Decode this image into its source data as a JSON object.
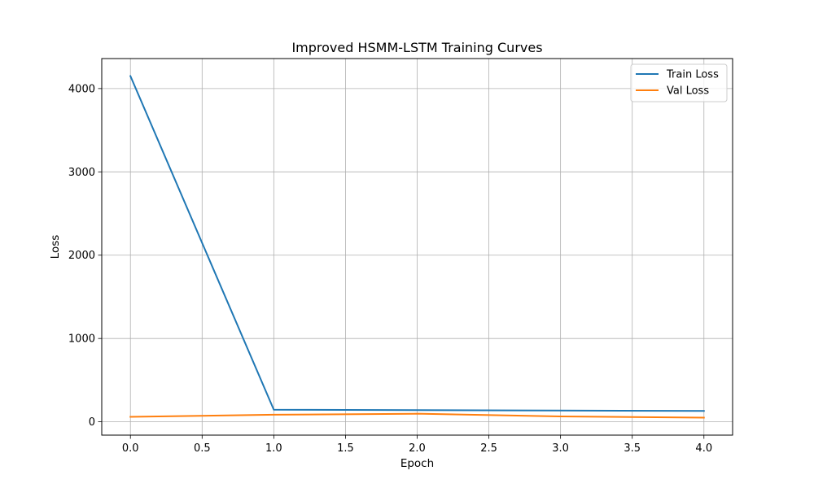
{
  "chart_data": {
    "type": "line",
    "title": "Improved HSMM-LSTM Training Curves",
    "xlabel": "Epoch",
    "ylabel": "Loss",
    "x": [
      0,
      1,
      2,
      3,
      4
    ],
    "xlim": [
      -0.2,
      4.2
    ],
    "ylim": [
      -160,
      4360
    ],
    "xticks": [
      0.0,
      0.5,
      1.0,
      1.5,
      2.0,
      2.5,
      3.0,
      3.5,
      4.0
    ],
    "xtick_labels": [
      "0.0",
      "0.5",
      "1.0",
      "1.5",
      "2.0",
      "2.5",
      "3.0",
      "3.5",
      "4.0"
    ],
    "yticks": [
      0,
      1000,
      2000,
      3000,
      4000
    ],
    "ytick_labels": [
      "0",
      "1000",
      "2000",
      "3000",
      "4000"
    ],
    "grid": true,
    "legend_position": "top-right",
    "series": [
      {
        "name": "Train Loss",
        "color": "#1f77b4",
        "values": [
          4150,
          145,
          140,
          135,
          130
        ]
      },
      {
        "name": "Val Loss",
        "color": "#ff7f0e",
        "values": [
          60,
          85,
          97,
          65,
          50
        ]
      }
    ]
  }
}
